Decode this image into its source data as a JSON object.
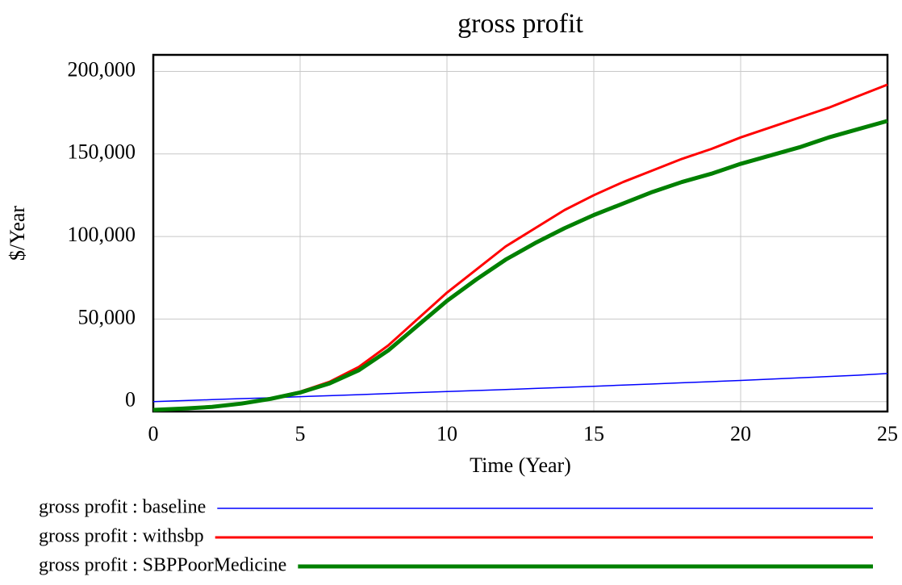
{
  "chart_data": {
    "type": "line",
    "title": "gross profit",
    "xlabel": "Time (Year)",
    "ylabel": "$/Year",
    "x": [
      0,
      1,
      2,
      3,
      4,
      5,
      6,
      7,
      8,
      9,
      10,
      11,
      12,
      13,
      14,
      15,
      16,
      17,
      18,
      19,
      20,
      21,
      22,
      23,
      24,
      25
    ],
    "series": [
      {
        "name": "gross profit : baseline",
        "color": "#0000ff",
        "width": 1.5,
        "values": [
          0,
          600,
          1200,
          1800,
          2300,
          3000,
          3600,
          4200,
          4900,
          5500,
          6100,
          6700,
          7300,
          8000,
          8600,
          9300,
          10000,
          10700,
          11400,
          12100,
          12800,
          13600,
          14400,
          15200,
          16000,
          17000
        ]
      },
      {
        "name": "gross profit : withsbp",
        "color": "#ff0000",
        "width": 3,
        "values": [
          -5000,
          -4000,
          -3000,
          -1000,
          2000,
          6000,
          12000,
          21000,
          34000,
          50000,
          66000,
          80000,
          94000,
          105000,
          116000,
          125000,
          133000,
          140000,
          147000,
          153000,
          160000,
          166000,
          172000,
          178000,
          185000,
          192000
        ]
      },
      {
        "name": "gross profit : SBPPoorMedicine",
        "color": "#008000",
        "width": 5,
        "values": [
          -5000,
          -4200,
          -3200,
          -1200,
          1700,
          5500,
          11000,
          19000,
          31000,
          46000,
          61000,
          74000,
          86000,
          96000,
          105000,
          113000,
          120000,
          127000,
          133000,
          138000,
          144000,
          149000,
          154000,
          160000,
          165000,
          170000
        ]
      }
    ],
    "xlim": [
      0,
      25
    ],
    "xticks": [
      0,
      5,
      10,
      15,
      20,
      25
    ],
    "ylim": [
      -6000,
      210000
    ],
    "yticks": [
      0,
      {
        "value": 50000,
        "label": "50,000"
      },
      {
        "value": 100000,
        "label": "100,000"
      },
      {
        "value": 150000,
        "label": "150,000"
      },
      {
        "value": 200000,
        "label": "200,000"
      }
    ],
    "grid": true
  }
}
